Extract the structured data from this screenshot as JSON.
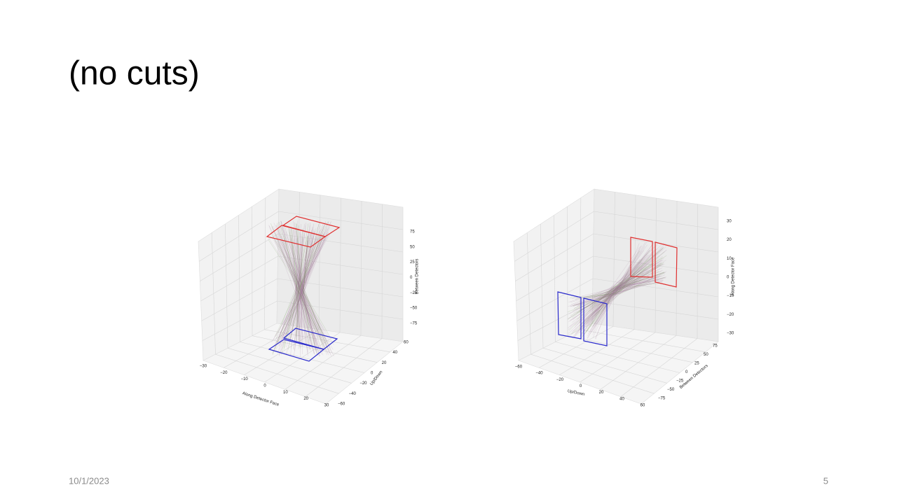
{
  "slide": {
    "title": "(no cuts)",
    "date": "10/1/2023",
    "page": "5"
  },
  "figures": [
    {
      "x_label": "Along Detector Face",
      "x_ticks": [
        "−30",
        "−20",
        "−10",
        "0",
        "10",
        "20",
        "30"
      ],
      "y_label": "Up/Down",
      "y_ticks": [
        "60",
        "40",
        "20",
        "0",
        "−20",
        "−40",
        "−60"
      ],
      "z_label": "Between Detectors",
      "z_ticks": [
        "75",
        "50",
        "25",
        "0",
        "−25",
        "−50",
        "−75"
      ]
    },
    {
      "x_label": "Up/Down",
      "x_ticks": [
        "−60",
        "−40",
        "−20",
        "0",
        "20",
        "40",
        "60"
      ],
      "y_label": "Between Detectors",
      "y_ticks": [
        "75",
        "50",
        "25",
        "0",
        "−25",
        "−50",
        "−75"
      ],
      "z_label": "Along Detector Face",
      "z_ticks": [
        "30",
        "20",
        "10",
        "0",
        "−10",
        "−20",
        "−30"
      ]
    }
  ]
}
